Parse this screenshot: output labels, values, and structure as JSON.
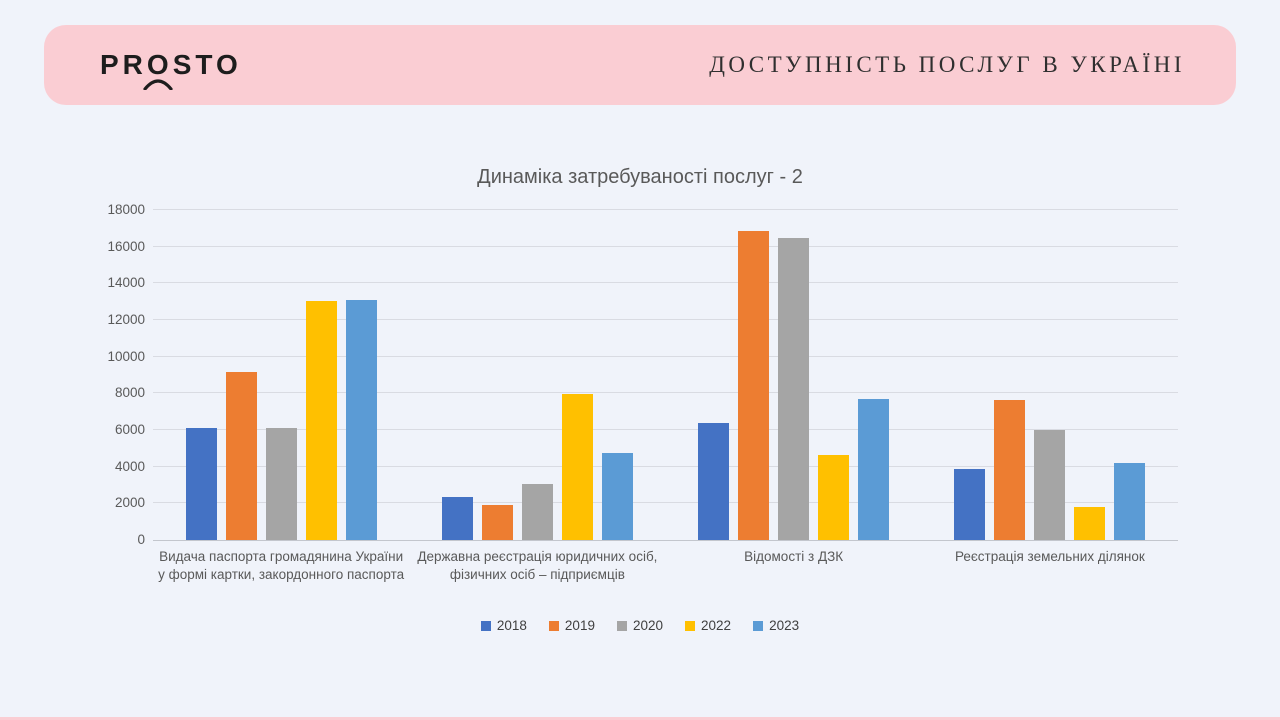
{
  "slide": {
    "background_color": "#F0F3FA",
    "accent_color": "#FACDD3"
  },
  "header": {
    "logo": {
      "pre": "PR",
      "o": "O",
      "post": "STO"
    },
    "title": "ДОСТУПНІСТЬ ПОСЛУГ В УКРАЇНІ"
  },
  "chart_data": {
    "type": "bar",
    "title": "Динаміка затребуваності послуг - 2",
    "categories": [
      "Видача паспорта громадянина України у формі картки, закордонного паспорта",
      "Державна реєстрація юридичних осіб, фізичних осіб – підприємців",
      "Відомості з ДЗК",
      "Реєстрація земельних ділянок"
    ],
    "series": [
      {
        "name": "2018",
        "color": "#4472C4",
        "values": [
          6100,
          2350,
          6400,
          3900
        ]
      },
      {
        "name": "2019",
        "color": "#ED7D31",
        "values": [
          9150,
          1900,
          16850,
          7650
        ]
      },
      {
        "name": "2020",
        "color": "#A5A5A5",
        "values": [
          6100,
          3050,
          16450,
          6000
        ]
      },
      {
        "name": "2022",
        "color": "#FFC000",
        "values": [
          13050,
          7950,
          4650,
          1800
        ]
      },
      {
        "name": "2023",
        "color": "#5B9BD5",
        "values": [
          13100,
          4750,
          7700,
          4200
        ]
      }
    ],
    "xlabel": "",
    "ylabel": "",
    "ylim": [
      0,
      18000
    ],
    "ytick_step": 2000,
    "grid": true,
    "legend_position": "bottom",
    "text_color": "#595959",
    "gridline_color": "#D9DBE2",
    "axisline_color": "#C3C6CD"
  }
}
